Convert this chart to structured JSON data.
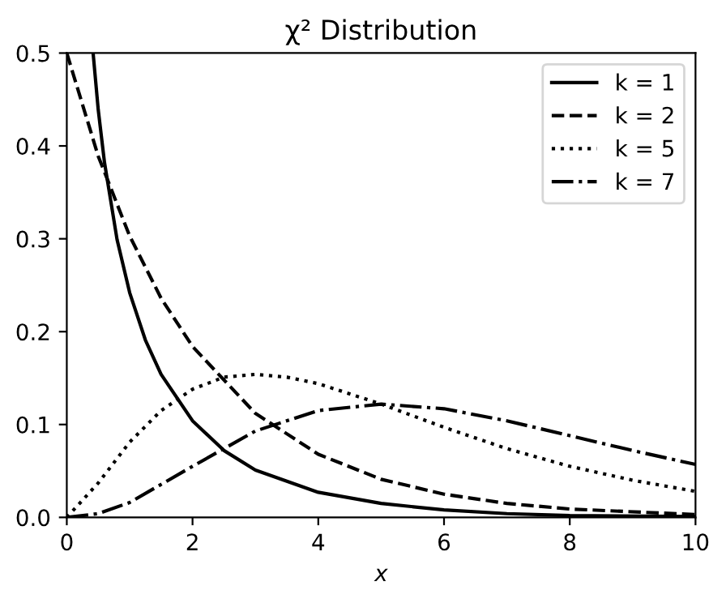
{
  "chart_data": {
    "type": "line",
    "title": "χ² Distribution",
    "xlabel": "x",
    "xlim": [
      0,
      10
    ],
    "ylim": [
      0,
      0.5
    ],
    "xticks": [
      0,
      2,
      4,
      6,
      8,
      10
    ],
    "yticks": [
      {
        "value": 0,
        "label": "0.0"
      },
      0.1,
      0.2,
      0.3,
      0.4,
      0.5
    ],
    "legend": "top right",
    "grid": false,
    "marker": "none",
    "series": [
      {
        "name": "k = 1",
        "color": "#000000",
        "line_style": "solid",
        "x": [
          0.42,
          0.5,
          0.6,
          0.8,
          1.0,
          1.25,
          1.5,
          2,
          2.5,
          3,
          4,
          5,
          6,
          7,
          8,
          10
        ],
        "values": [
          0.499,
          0.439,
          0.382,
          0.299,
          0.242,
          0.191,
          0.154,
          0.104,
          0.072,
          0.051,
          0.027,
          0.015,
          0.008,
          0.004,
          0.002,
          0.001
        ]
      },
      {
        "name": "k = 2",
        "color": "#000000",
        "line_style": "dashed",
        "x": [
          0,
          0.5,
          1,
          1.5,
          2,
          3,
          4,
          5,
          6,
          7,
          8,
          10
        ],
        "values": [
          0.5,
          0.389,
          0.303,
          0.236,
          0.184,
          0.112,
          0.068,
          0.041,
          0.025,
          0.015,
          0.009,
          0.003
        ]
      },
      {
        "name": "k = 5",
        "color": "#000000",
        "line_style": "dotted",
        "x": [
          0,
          0.5,
          1,
          1.5,
          2,
          2.5,
          3,
          3.5,
          4,
          5,
          6,
          7,
          8,
          9,
          10
        ],
        "values": [
          0,
          0.037,
          0.081,
          0.115,
          0.138,
          0.151,
          0.154,
          0.151,
          0.144,
          0.122,
          0.097,
          0.074,
          0.055,
          0.04,
          0.028
        ]
      },
      {
        "name": "k = 7",
        "color": "#000000",
        "line_style": "dashdot",
        "x": [
          0,
          0.5,
          1,
          2,
          3,
          4,
          5,
          6,
          7,
          8,
          9,
          10
        ],
        "values": [
          0,
          0.004,
          0.016,
          0.055,
          0.093,
          0.115,
          0.122,
          0.117,
          0.104,
          0.088,
          0.072,
          0.057
        ]
      }
    ]
  }
}
